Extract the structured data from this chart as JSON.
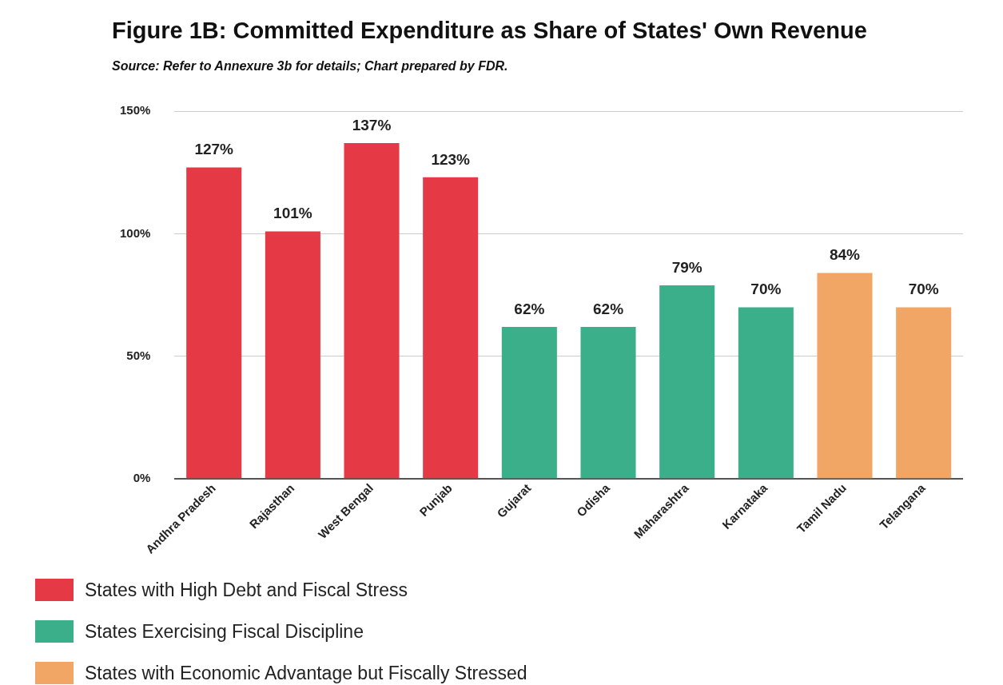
{
  "chart_data": {
    "type": "bar",
    "title": "Figure 1B: Committed Expenditure as Share of States' Own Revenue",
    "subtitle": "Source: Refer to Annexure 3b for details; Chart prepared by FDR.",
    "categories": [
      "Andhra Pradesh",
      "Rajasthan",
      "West Bengal",
      "Punjab",
      "Gujarat",
      "Odisha",
      "Maharashtra",
      "Karnataka",
      "Tamil Nadu",
      "Telangana"
    ],
    "series": [
      {
        "name": "States with High Debt and Fiscal Stress",
        "color": "#e63946",
        "values": [
          127,
          101,
          137,
          123,
          null,
          null,
          null,
          null,
          null,
          null
        ],
        "value_labels": [
          "127%",
          "101%",
          "137%",
          "123%",
          null,
          null,
          null,
          null,
          null,
          null
        ]
      },
      {
        "name": "States Exercising Fiscal Discipline",
        "color": "#3aaf8a",
        "values": [
          null,
          null,
          null,
          null,
          62,
          62,
          79,
          70,
          null,
          null
        ],
        "value_labels": [
          null,
          null,
          null,
          null,
          "62%",
          "62%",
          "79%",
          "70%",
          null,
          null
        ]
      },
      {
        "name": "States with Economic Advantage but Fiscally Stressed",
        "color": "#f2a665",
        "values": [
          null,
          null,
          null,
          null,
          null,
          null,
          null,
          null,
          84,
          70
        ],
        "value_labels": [
          null,
          null,
          null,
          null,
          null,
          null,
          null,
          null,
          "84%",
          "70%"
        ]
      }
    ],
    "ylim": [
      0,
      150
    ],
    "yticks": [
      {
        "value": 0,
        "label": "0%"
      },
      {
        "value": 50,
        "label": "50%"
      },
      {
        "value": 100,
        "label": "100%"
      },
      {
        "value": 150,
        "label": "150%"
      }
    ],
    "grid": "y",
    "legend": "bottom"
  }
}
